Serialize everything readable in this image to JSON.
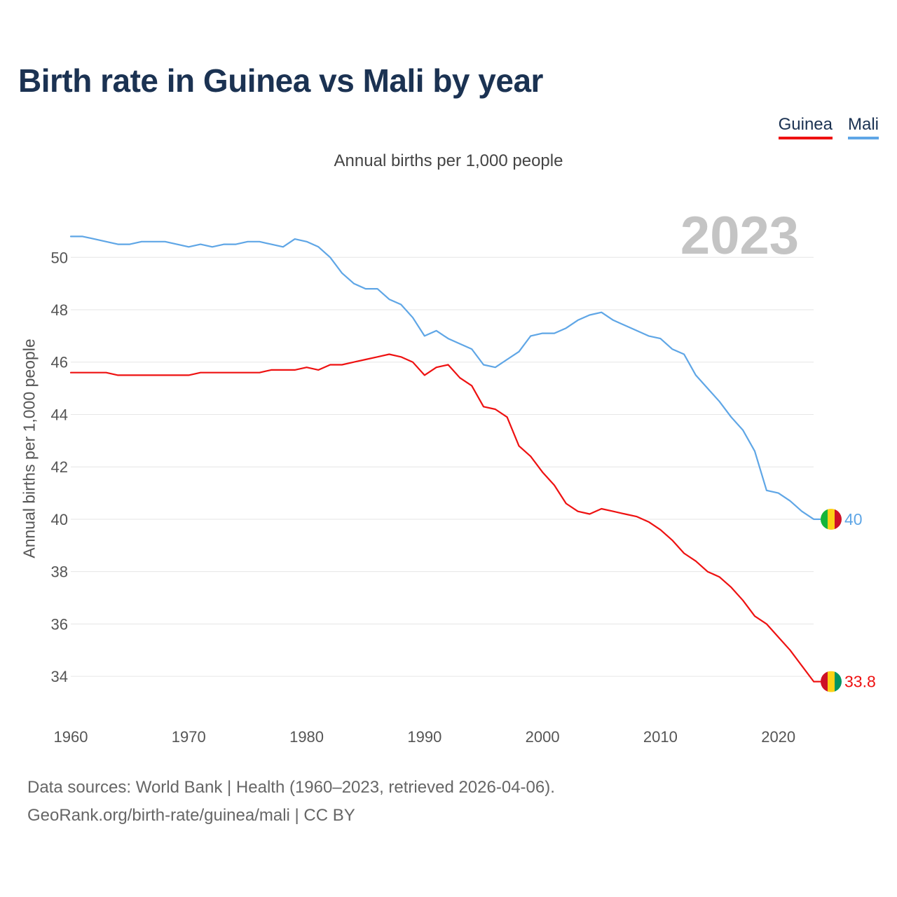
{
  "title": "Birth rate in Guinea vs Mali by year",
  "subtitle": "Annual births per 1,000 people",
  "legend": {
    "guinea": "Guinea",
    "mali": "Mali"
  },
  "footer": {
    "line1": "Data sources: World Bank | Health (1960–2023, retrieved 2026-04-06).",
    "line2": "GeoRank.org/birth-rate/guinea/mali | CC BY"
  },
  "colors": {
    "guinea": "#ee1111",
    "mali": "#5fa6e6",
    "title": "#1b3252",
    "grid": "#e6e6e6",
    "watermark": "#c4c4c4"
  },
  "chart_data": {
    "type": "line",
    "title": "Birth rate in Guinea vs Mali by year",
    "xlabel": "",
    "ylabel": "Annual births per 1,000 people",
    "year_label": "2023",
    "xlim": [
      1960,
      2024
    ],
    "ylim": [
      32.8,
      51.8
    ],
    "x_ticks": [
      1960,
      1970,
      1980,
      1990,
      2000,
      2010,
      2020
    ],
    "y_ticks": [
      34,
      36,
      38,
      40,
      42,
      44,
      46,
      48,
      50
    ],
    "x": [
      1960,
      1961,
      1962,
      1963,
      1964,
      1965,
      1966,
      1967,
      1968,
      1969,
      1970,
      1971,
      1972,
      1973,
      1974,
      1975,
      1976,
      1977,
      1978,
      1979,
      1980,
      1981,
      1982,
      1983,
      1984,
      1985,
      1986,
      1987,
      1988,
      1989,
      1990,
      1991,
      1992,
      1993,
      1994,
      1995,
      1996,
      1997,
      1998,
      1999,
      2000,
      2001,
      2002,
      2003,
      2004,
      2005,
      2006,
      2007,
      2008,
      2009,
      2010,
      2011,
      2012,
      2013,
      2014,
      2015,
      2016,
      2017,
      2018,
      2019,
      2020,
      2021,
      2022,
      2023
    ],
    "series": [
      {
        "name": "Guinea",
        "end_label": "33.8",
        "values": [
          45.6,
          45.6,
          45.6,
          45.6,
          45.5,
          45.5,
          45.5,
          45.5,
          45.5,
          45.5,
          45.5,
          45.6,
          45.6,
          45.6,
          45.6,
          45.6,
          45.6,
          45.7,
          45.7,
          45.7,
          45.8,
          45.7,
          45.9,
          45.9,
          46.0,
          46.1,
          46.2,
          46.3,
          46.2,
          46.0,
          45.5,
          45.8,
          45.9,
          45.4,
          45.1,
          44.3,
          44.2,
          43.9,
          42.8,
          42.4,
          41.8,
          41.3,
          40.6,
          40.3,
          40.2,
          40.4,
          40.3,
          40.2,
          40.1,
          39.9,
          39.6,
          39.2,
          38.7,
          38.4,
          38.0,
          37.8,
          37.4,
          36.9,
          36.3,
          36.0,
          35.5,
          35.0,
          34.4,
          33.8
        ]
      },
      {
        "name": "Mali",
        "end_label": "40",
        "values": [
          50.8,
          50.8,
          50.7,
          50.6,
          50.5,
          50.5,
          50.6,
          50.6,
          50.6,
          50.5,
          50.4,
          50.5,
          50.4,
          50.5,
          50.5,
          50.6,
          50.6,
          50.5,
          50.4,
          50.7,
          50.6,
          50.4,
          50.0,
          49.4,
          49.0,
          48.8,
          48.8,
          48.4,
          48.2,
          47.7,
          47.0,
          47.2,
          46.9,
          46.7,
          46.5,
          45.9,
          45.8,
          46.1,
          46.4,
          47.0,
          47.1,
          47.1,
          47.3,
          47.6,
          47.8,
          47.9,
          47.6,
          47.4,
          47.2,
          47.0,
          46.9,
          46.5,
          46.3,
          45.5,
          45.0,
          44.5,
          43.9,
          43.4,
          42.6,
          41.1,
          41.0,
          40.7,
          40.3,
          40.0
        ]
      }
    ]
  }
}
